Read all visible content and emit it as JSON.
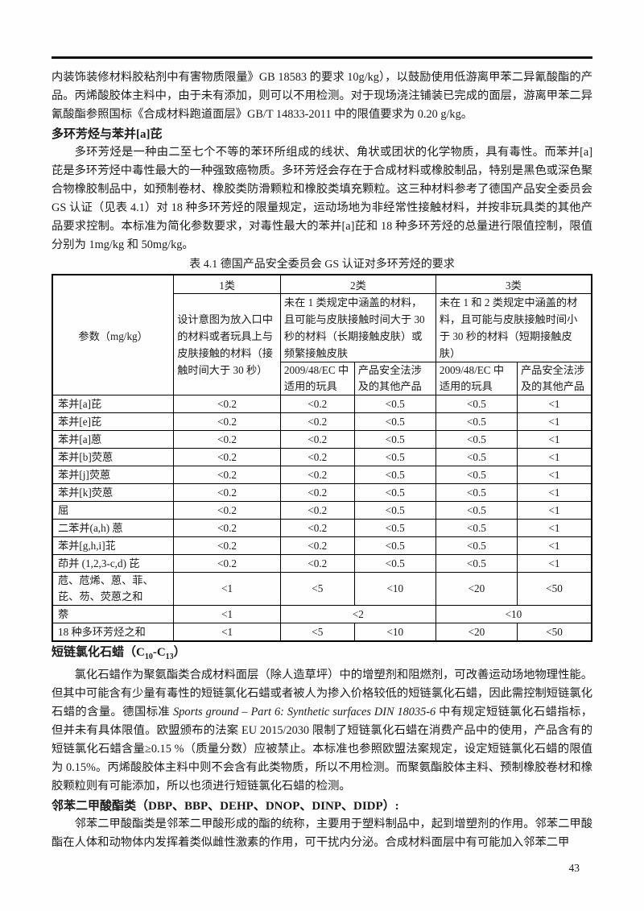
{
  "page": {
    "number": "43"
  },
  "intro": {
    "text": "内装饰装修材料胶粘剂中有害物质限量》GB 18583 的要求 10g/kg），以鼓励使用低游离甲苯二异氰酸酯的产品。丙烯酸胶体主料中，由于未有添加，则可以不用检测。对于现场浇注铺装已完成的面层，游离甲苯二异氰酸酯参照国标《合成材料跑道面层》GB/T 14833-2011 中的限值要求为 0.20 g/kg。"
  },
  "pah": {
    "heading": "多环芳烃与苯并[a]芘",
    "body": "多环芳烃是一种由二至七个不等的苯环所组成的线状、角状或团状的化学物质，具有毒性。而苯并[a]芘是多环芳烃中毒性最大的一种强致癌物质。多环芳烃会存在于合成材料或橡胶制品，特别是黑色或深色聚合物橡胶制品中，如预制卷材、橡胶类防滑颗粒和橡胶类填充颗粒。这三种材料参考了德国产品安全委员会 GS 认证（见表 4.1）对 18 种多环芳烃的限量规定，运动场地为非经常性接触材料，并按非玩具类的其他产品要求控制。本标准为简化参数要求，对毒性最大的苯并[a]芘和 18 种多环芳烃的总量进行限值控制，限值分别为 1mg/kg 和 50mg/kg。"
  },
  "table": {
    "caption": "表 4.1 德国产品安全委员会 GS 认证对多环芳烃的要求",
    "param_header": "参数（mg/kg）",
    "class1": {
      "label": "1类",
      "desc": "设计意图为放入口中的材料或者玩具上与皮肤接触的材料（接触时间大于 30 秒）"
    },
    "class2": {
      "label": "2类",
      "desc": "未在 1 类规定中涵盖的材料，且可能与皮肤接触时间大于 30 秒的材料（长期接触皮肤）或频繁接触皮肤",
      "sub1": "2009/48/EC 中适用的玩具",
      "sub2": "产品安全法涉及的其他产品"
    },
    "class3": {
      "label": "3类",
      "desc": "未在 1 和 2 类规定中涵盖的材料，且可能与皮肤接触时间小于 30 秒的材料（短期接触皮肤）",
      "sub1": "2009/48/EC 中适用的玩具",
      "sub2": "产品安全法涉及的其他产品"
    },
    "rows": [
      {
        "name": "苯并[a]芘",
        "cells": [
          {
            "v": "<0.2"
          },
          {
            "v": "<0.2"
          },
          {
            "v": "<0.5"
          },
          {
            "v": "<0.5"
          },
          {
            "v": "<1"
          }
        ]
      },
      {
        "name": "苯并[e]芘",
        "cells": [
          {
            "v": "<0.2"
          },
          {
            "v": "<0.2"
          },
          {
            "v": "<0.5"
          },
          {
            "v": "<0.5"
          },
          {
            "v": "<1"
          }
        ]
      },
      {
        "name": "苯并[a]蒽",
        "cells": [
          {
            "v": "<0.2"
          },
          {
            "v": "<0.2"
          },
          {
            "v": "<0.5"
          },
          {
            "v": "<0.5"
          },
          {
            "v": "<1"
          }
        ]
      },
      {
        "name": "苯并[b]荧蒽",
        "cells": [
          {
            "v": "<0.2"
          },
          {
            "v": "<0.2"
          },
          {
            "v": "<0.5"
          },
          {
            "v": "<0.5"
          },
          {
            "v": "<1"
          }
        ]
      },
      {
        "name": "苯并[j]荧蒽",
        "cells": [
          {
            "v": "<0.2"
          },
          {
            "v": "<0.2"
          },
          {
            "v": "<0.5"
          },
          {
            "v": "<0.5"
          },
          {
            "v": "<1"
          }
        ]
      },
      {
        "name": "苯并[k]荧蒽",
        "cells": [
          {
            "v": "<0.2"
          },
          {
            "v": "<0.2"
          },
          {
            "v": "<0.5"
          },
          {
            "v": "<0.5"
          },
          {
            "v": "<1"
          }
        ]
      },
      {
        "name": "屈",
        "cells": [
          {
            "v": "<0.2"
          },
          {
            "v": "<0.2"
          },
          {
            "v": "<0.5"
          },
          {
            "v": "<0.5"
          },
          {
            "v": "<1"
          }
        ]
      },
      {
        "name": "二苯并(a,h) 蒽",
        "cells": [
          {
            "v": "<0.2"
          },
          {
            "v": "<0.2"
          },
          {
            "v": "<0.5"
          },
          {
            "v": "<0.5"
          },
          {
            "v": "<1"
          }
        ]
      },
      {
        "name": "苯并[g,h,i]苝",
        "cells": [
          {
            "v": "<0.2"
          },
          {
            "v": "<0.2"
          },
          {
            "v": "<0.5"
          },
          {
            "v": "<0.5"
          },
          {
            "v": "<1"
          }
        ]
      },
      {
        "name": "茚并 (1,2,3-c,d) 芘",
        "cells": [
          {
            "v": "<0.2"
          },
          {
            "v": "<0.2"
          },
          {
            "v": "<0.5"
          },
          {
            "v": "<0.5"
          },
          {
            "v": "<1"
          }
        ]
      },
      {
        "name": "苊、苊烯、蒽、菲、芘、芴、荧蒽之和",
        "cells": [
          {
            "v": "<1"
          },
          {
            "v": "<5"
          },
          {
            "v": "<10"
          },
          {
            "v": "<20"
          },
          {
            "v": "<50"
          }
        ]
      },
      {
        "name": "萘",
        "cells": [
          {
            "v": "<1"
          },
          {
            "v": "<2",
            "span": 2
          },
          {
            "v": "<10",
            "span": 2
          }
        ]
      },
      {
        "name": "18 种多环芳烃之和",
        "cells": [
          {
            "v": "<1"
          },
          {
            "v": "<5"
          },
          {
            "v": "<10"
          },
          {
            "v": "<20"
          },
          {
            "v": "<50"
          }
        ]
      }
    ]
  },
  "sccp": {
    "heading": {
      "part1": "短链氯化石蜡（C",
      "sub1": "10",
      "part2": "-C",
      "sub2": "13",
      "part3": "）"
    },
    "body_pre": "氯化石蜡作为聚氨酯类合成材料面层（除人造草坪）中的增塑剂和阻燃剂，可改善运动场地物理性能。但其中可能含有少量有毒性的短链氯化石蜡或者被人为掺入价格较低的短链氯化石蜡，因此需控制短链氯化石蜡的含量。德国标准 ",
    "body_italic": "Sports ground – Part 6: Synthetic surfaces DIN 18035-6",
    "body_post": " 中有规定短链氯化石蜡指标，但并未有具体限值。欧盟颁布的法案 EU 2015/2030 限制了短链氯化石蜡在消费产品中的使用，产品含有的短链氯化石蜡含量≥0.15 %（质量分数）应被禁止。本标准也参照欧盟法案规定，设定短链氯化石蜡的限值为 0.15%。丙烯酸胶体主料中则不会含有此类物质，所以不用检测。而聚氨酯胶体主料、预制橡胶卷材和橡胶颗粒则有可能添加，所以也须进行短链氯化石蜡的检测。"
  },
  "phthalate": {
    "heading": "邻苯二甲酸酯类（DBP、BBP、DEHP、DNOP、DINP、DIDP）:",
    "body": "邻苯二甲酸酯类是邻苯二甲酸形成的酯的统称，主要用于塑料制品中，起到增塑剂的作用。邻苯二甲酸酯在人体和动物体内发挥着类似雌性激素的作用，可干扰内分泌。合成材料面层中有可能加入邻苯二甲"
  }
}
